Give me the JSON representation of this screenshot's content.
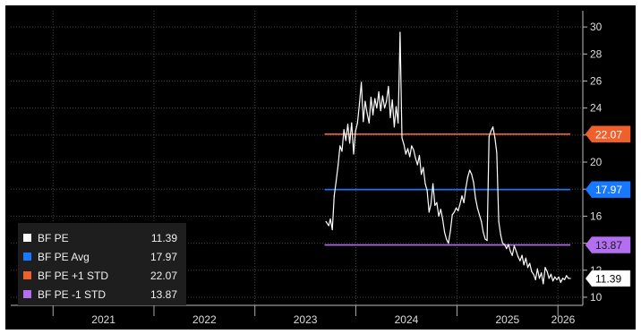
{
  "chart_data": {
    "type": "line",
    "x_ticks": [
      "2021",
      "2022",
      "2023",
      "2024",
      "2025",
      "2026"
    ],
    "y_ticks": [
      10,
      12,
      14,
      16,
      18,
      20,
      22,
      24,
      26,
      28,
      30
    ],
    "ylim": [
      9.4,
      31.2
    ],
    "xlim": [
      "2020-08",
      "2026-04"
    ],
    "grid": true,
    "legend_position": "bottom-left",
    "series": [
      {
        "name": "BF PE",
        "color": "#ffffff",
        "last_value": "11.39",
        "x": [
          "2023-09-15",
          "2023-09-25",
          "2023-10-01",
          "2023-10-08",
          "2023-10-15",
          "2023-10-22",
          "2023-10-29",
          "2023-11-05",
          "2023-11-12",
          "2023-11-19",
          "2023-11-26",
          "2023-12-03",
          "2023-12-10",
          "2023-12-17",
          "2023-12-24",
          "2023-12-31",
          "2024-01-07",
          "2024-01-14",
          "2024-01-21",
          "2024-01-28",
          "2024-02-04",
          "2024-02-11",
          "2024-02-18",
          "2024-02-25",
          "2024-03-03",
          "2024-03-10",
          "2024-03-17",
          "2024-03-24",
          "2024-03-31",
          "2024-04-07",
          "2024-04-14",
          "2024-04-21",
          "2024-04-28",
          "2024-05-05",
          "2024-05-12",
          "2024-05-19",
          "2024-05-26",
          "2024-06-02",
          "2024-06-09",
          "2024-06-16",
          "2024-06-23",
          "2024-06-30",
          "2024-07-07",
          "2024-07-14",
          "2024-07-21",
          "2024-07-28",
          "2024-08-04",
          "2024-08-11",
          "2024-08-18",
          "2024-08-25",
          "2024-09-01",
          "2024-09-08",
          "2024-09-15",
          "2024-09-22",
          "2024-09-29",
          "2024-10-06",
          "2024-10-13",
          "2024-10-20",
          "2024-10-27",
          "2024-11-03",
          "2024-11-10",
          "2024-11-17",
          "2024-11-24",
          "2024-12-01",
          "2024-12-08",
          "2024-12-15",
          "2024-12-22",
          "2024-12-29",
          "2025-01-05",
          "2025-01-12",
          "2025-01-19",
          "2025-01-26",
          "2025-02-02",
          "2025-02-09",
          "2025-02-16",
          "2025-02-23",
          "2025-03-02",
          "2025-03-09",
          "2025-03-16",
          "2025-03-23",
          "2025-03-30",
          "2025-04-06",
          "2025-04-13",
          "2025-04-20",
          "2025-04-27",
          "2025-05-04",
          "2025-05-11",
          "2025-05-18",
          "2025-05-25",
          "2025-06-01",
          "2025-06-08",
          "2025-06-15",
          "2025-06-22",
          "2025-06-29",
          "2025-07-06",
          "2025-07-13",
          "2025-07-20",
          "2025-07-27",
          "2025-08-03",
          "2025-08-10",
          "2025-08-17",
          "2025-08-24",
          "2025-08-31",
          "2025-09-07",
          "2025-09-14",
          "2025-09-21",
          "2025-09-28",
          "2025-10-05",
          "2025-10-12",
          "2025-10-19",
          "2025-10-26",
          "2025-11-02",
          "2025-11-09",
          "2025-11-16",
          "2025-11-23",
          "2025-11-30",
          "2025-12-07",
          "2025-12-14",
          "2025-12-21",
          "2025-12-28",
          "2026-01-04",
          "2026-01-11",
          "2026-01-18",
          "2026-01-25",
          "2026-02-01",
          "2026-02-08",
          "2026-02-15"
        ],
        "values": [
          15.6,
          15.3,
          15.8,
          15.0,
          17.5,
          18.6,
          19.8,
          21.2,
          20.8,
          22.4,
          21.6,
          22.8,
          21.4,
          22.9,
          20.6,
          22.3,
          22.9,
          24.3,
          25.9,
          23.0,
          24.5,
          23.6,
          22.9,
          24.8,
          23.5,
          24.7,
          24.0,
          25.2,
          23.8,
          24.9,
          24.0,
          24.5,
          25.6,
          23.3,
          24.6,
          22.6,
          24.1,
          22.9,
          29.6,
          21.8,
          21.3,
          20.6,
          21.0,
          20.4,
          21.2,
          20.9,
          20.3,
          19.8,
          20.5,
          19.1,
          19.6,
          18.4,
          17.9,
          16.3,
          16.9,
          18.4,
          16.8,
          17.0,
          16.0,
          16.5,
          15.8,
          14.8,
          14.3,
          14.0,
          14.9,
          16.1,
          16.3,
          16.6,
          16.4,
          16.9,
          17.5,
          17.0,
          18.1,
          18.9,
          19.4,
          19.1,
          18.5,
          17.3,
          16.6,
          16.1,
          15.6,
          14.8,
          14.3,
          14.2,
          21.9,
          22.3,
          22.6,
          21.8,
          20.7,
          15.6,
          14.6,
          14.0,
          13.9,
          13.6,
          13.9,
          13.4,
          13.1,
          13.8,
          13.4,
          13.0,
          12.7,
          13.1,
          12.4,
          12.9,
          12.2,
          12.5,
          11.9,
          11.7,
          11.3,
          12.1,
          11.4,
          11.8,
          11.0,
          12.2,
          11.9,
          11.4,
          11.7,
          11.2,
          11.5,
          11.3,
          11.5,
          11.1,
          11.4,
          11.3,
          11.6,
          11.4,
          11.39
        ]
      },
      {
        "name": "BF PE Avg",
        "color": "#1878ff",
        "value": 17.97,
        "last_value": "17.97",
        "x_start": "2023-09-10",
        "x_end": "2026-02-15"
      },
      {
        "name": "BF PE +1 STD",
        "color": "#f0602c",
        "value": 22.07,
        "last_value": "22.07",
        "x_start": "2023-09-10",
        "x_end": "2026-02-15"
      },
      {
        "name": "BF PE -1 STD",
        "color": "#b46ef0",
        "value": 13.87,
        "last_value": "13.87",
        "x_start": "2023-09-10",
        "x_end": "2026-02-15"
      }
    ]
  }
}
